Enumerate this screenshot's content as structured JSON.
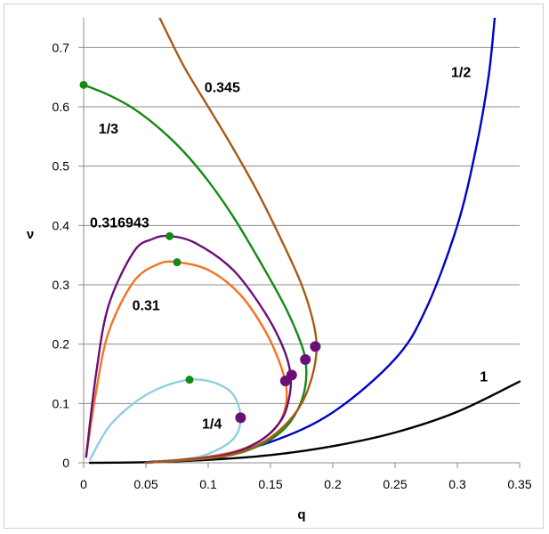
{
  "chart_data": {
    "type": "line",
    "title": "",
    "xlabel": "q",
    "ylabel": "ν",
    "xlim": [
      0,
      0.35
    ],
    "ylim": [
      0,
      0.75
    ],
    "xticks": [
      "0",
      "0.05",
      "0.1",
      "0.15",
      "0.2",
      "0.25",
      "0.3",
      "0.35"
    ],
    "yticks": [
      "0",
      "0.1",
      "0.2",
      "0.3",
      "0.4",
      "0.5",
      "0.6",
      "0.7"
    ],
    "grid": "horizontal",
    "legend": "none",
    "series": [
      {
        "name": "1",
        "color": "#000000",
        "x": [
          0.005,
          0.05,
          0.1,
          0.15,
          0.2,
          0.25,
          0.3,
          0.35
        ],
        "y": [
          0.0,
          0.001,
          0.005,
          0.013,
          0.028,
          0.051,
          0.086,
          0.137
        ]
      },
      {
        "name": "1/2",
        "color": "#0000cc",
        "x": [
          0.05,
          0.1,
          0.15,
          0.2,
          0.25,
          0.275,
          0.3,
          0.315,
          0.325,
          0.33
        ],
        "y": [
          0.001,
          0.01,
          0.035,
          0.085,
          0.175,
          0.26,
          0.4,
          0.53,
          0.65,
          0.75
        ]
      },
      {
        "name": "1/4",
        "color": "#8ecfdf",
        "x": [
          0.005,
          0.02,
          0.04,
          0.06,
          0.085,
          0.105,
          0.12,
          0.126,
          0.12,
          0.1,
          0.08,
          0.05
        ],
        "y": [
          0.005,
          0.06,
          0.1,
          0.125,
          0.14,
          0.135,
          0.115,
          0.076,
          0.04,
          0.015,
          0.006,
          0.0
        ]
      },
      {
        "name": "0.31",
        "color": "#f5731e",
        "x": [
          0.002,
          0.01,
          0.02,
          0.04,
          0.06,
          0.075,
          0.1,
          0.125,
          0.145,
          0.158,
          0.163,
          0.16,
          0.15,
          0.13,
          0.1,
          0.05
        ],
        "y": [
          0.01,
          0.12,
          0.22,
          0.305,
          0.335,
          0.338,
          0.325,
          0.285,
          0.225,
          0.165,
          0.12,
          0.08,
          0.05,
          0.025,
          0.01,
          0.0
        ]
      },
      {
        "name": "0.316943",
        "color": "#6a0f78",
        "x": [
          0.002,
          0.01,
          0.02,
          0.04,
          0.055,
          0.069,
          0.09,
          0.12,
          0.145,
          0.16,
          0.166,
          0.165,
          0.158,
          0.14,
          0.11,
          0.05
        ],
        "y": [
          0.01,
          0.15,
          0.265,
          0.355,
          0.377,
          0.382,
          0.37,
          0.325,
          0.255,
          0.195,
          0.15,
          0.11,
          0.07,
          0.035,
          0.012,
          0.0
        ]
      },
      {
        "name": "1/3",
        "color": "#138a13",
        "x": [
          0.0,
          0.02,
          0.04,
          0.06,
          0.08,
          0.1,
          0.12,
          0.14,
          0.16,
          0.172,
          0.178,
          0.178,
          0.172,
          0.16,
          0.14,
          0.11,
          0.05
        ],
        "y": [
          0.637,
          0.62,
          0.597,
          0.565,
          0.525,
          0.475,
          0.415,
          0.345,
          0.27,
          0.215,
          0.174,
          0.13,
          0.09,
          0.055,
          0.028,
          0.01,
          0.0
        ]
      },
      {
        "name": "0.345",
        "color": "#a85a17",
        "x": [
          0.061,
          0.08,
          0.1,
          0.12,
          0.14,
          0.16,
          0.175,
          0.184,
          0.187,
          0.184,
          0.175,
          0.16,
          0.14,
          0.11,
          0.05
        ],
        "y": [
          0.75,
          0.67,
          0.6,
          0.53,
          0.455,
          0.37,
          0.3,
          0.24,
          0.196,
          0.15,
          0.1,
          0.06,
          0.03,
          0.01,
          0.0
        ]
      }
    ],
    "curve_labels": [
      {
        "text": "1",
        "x": 0.318,
        "y": 0.137
      },
      {
        "text": "1/2",
        "x": 0.295,
        "y": 0.65
      },
      {
        "text": "0.345",
        "x": 0.097,
        "y": 0.625
      },
      {
        "text": "1/3",
        "x": 0.012,
        "y": 0.555
      },
      {
        "text": "0.316943",
        "x": 0.005,
        "y": 0.397
      },
      {
        "text": "0.31",
        "x": 0.039,
        "y": 0.257
      },
      {
        "text": "1/4",
        "x": 0.095,
        "y": 0.058
      }
    ],
    "markers": [
      {
        "x": 0.0,
        "y": 0.637,
        "color": "#138a13",
        "r": 4.5
      },
      {
        "x": 0.069,
        "y": 0.382,
        "color": "#138a13",
        "r": 4.5
      },
      {
        "x": 0.075,
        "y": 0.338,
        "color": "#138a13",
        "r": 4.5
      },
      {
        "x": 0.085,
        "y": 0.14,
        "color": "#138a13",
        "r": 4.5
      },
      {
        "x": 0.126,
        "y": 0.076,
        "color": "#6a0f78",
        "r": 6
      },
      {
        "x": 0.162,
        "y": 0.138,
        "color": "#6a0f78",
        "r": 6
      },
      {
        "x": 0.167,
        "y": 0.148,
        "color": "#6a0f78",
        "r": 6
      },
      {
        "x": 0.178,
        "y": 0.174,
        "color": "#6a0f78",
        "r": 6
      },
      {
        "x": 0.186,
        "y": 0.196,
        "color": "#6a0f78",
        "r": 6
      }
    ]
  }
}
